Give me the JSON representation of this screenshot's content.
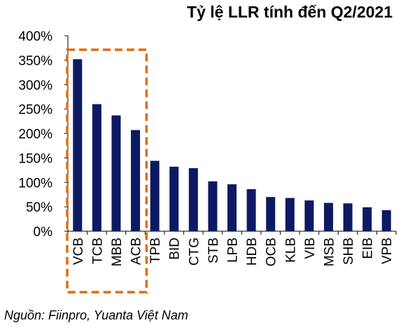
{
  "chart_data": {
    "type": "bar",
    "title": "Tỷ lệ LLR tính đến Q2/2021",
    "source": "Nguồn: Fiinpro, Yuanta Việt Nam",
    "categories": [
      "VCB",
      "TCB",
      "MBB",
      "ACB",
      "TPB",
      "BID",
      "CTG",
      "STB",
      "LPB",
      "HDB",
      "OCB",
      "KLB",
      "VIB",
      "MSB",
      "SHB",
      "EIB",
      "VPB"
    ],
    "values": [
      352,
      260,
      237,
      207,
      144,
      132,
      129,
      102,
      96,
      86,
      70,
      68,
      63,
      58,
      57,
      49,
      43
    ],
    "y_ticks": [
      "0%",
      "50%",
      "100%",
      "150%",
      "200%",
      "250%",
      "300%",
      "350%",
      "400%"
    ],
    "ylim": [
      0,
      400
    ],
    "xlabel": "",
    "ylabel": "",
    "grid": false,
    "highlight": {
      "categories": [
        "VCB",
        "TCB",
        "MBB",
        "ACB"
      ],
      "style": "dashed-box",
      "color": "#E46C0A"
    },
    "bar_color": "#0D1A63"
  }
}
